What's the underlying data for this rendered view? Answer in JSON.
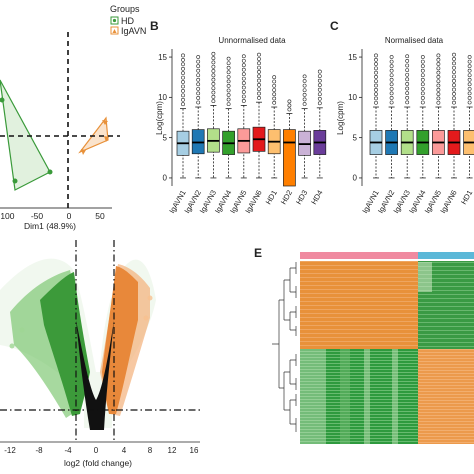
{
  "panels": {
    "A": {
      "legend_title": "Groups",
      "legend_items": [
        "HD",
        "IgAVN"
      ],
      "xlabel": "Dim1 (48.9%)",
      "xticks": [
        "-100",
        "-50",
        "0",
        "50"
      ]
    },
    "B": {
      "letter": "B",
      "title": "Unnormalised data",
      "ylabel": "Log(cpm)",
      "yticks": [
        "0",
        "5",
        "10",
        "15"
      ]
    },
    "C": {
      "letter": "C",
      "title": "Normalised data",
      "ylabel": "Log(cpm)",
      "yticks": [
        "0",
        "5",
        "10",
        "15"
      ]
    },
    "D": {
      "xlabel": "log2 (fold change)",
      "xticks": [
        "-12",
        "-8",
        "-4",
        "0",
        "4",
        "8",
        "12",
        "16"
      ]
    },
    "E": {
      "letter": "E"
    }
  },
  "colors": {
    "HD": "#3a9a3a",
    "IgAVN": "#e8913a",
    "heat_orange": "#e8913a",
    "heat_green": "#2e9a3e",
    "bar_pink": "#f08aa0",
    "bar_blue": "#5bb8d8"
  },
  "chart_data": [
    {
      "panel": "B",
      "type": "box",
      "title": "Unnormalised data",
      "ylabel": "Log(cpm)",
      "ylim": [
        -1,
        16
      ],
      "categories": [
        "IgAVN1",
        "IgAVN2",
        "IgAVN3",
        "IgAVN4",
        "IgAVN5",
        "IgAVN6",
        "HD1",
        "HD2",
        "HD3",
        "HD4"
      ],
      "colors": [
        "#a6cee3",
        "#1f78b4",
        "#b2df8a",
        "#33a02c",
        "#fb9a99",
        "#e31a1c",
        "#fdbf6f",
        "#ff7f00",
        "#cab2d6",
        "#6a3d9a"
      ],
      "q1": [
        2.8,
        3.0,
        3.2,
        2.9,
        3.1,
        3.3,
        3.0,
        -1.0,
        2.8,
        2.9
      ],
      "median": [
        4.3,
        4.4,
        4.6,
        4.3,
        4.6,
        4.8,
        4.5,
        4.4,
        4.2,
        4.4
      ],
      "q3": [
        5.8,
        6.0,
        6.1,
        5.8,
        6.1,
        6.3,
        6.0,
        6.0,
        5.8,
        5.9
      ],
      "whisker_low": [
        0.0,
        0.0,
        0.0,
        0.0,
        0.0,
        0.0,
        0.0,
        0.0,
        0.0,
        0.0
      ],
      "whisker_high": [
        8.6,
        8.8,
        9.0,
        8.6,
        9.0,
        9.4,
        8.8,
        8.0,
        8.6,
        8.7
      ],
      "outlier_max": [
        15.2,
        15.0,
        15.4,
        14.8,
        15.1,
        15.3,
        12.5,
        9.5,
        12.6,
        13.2
      ]
    },
    {
      "panel": "C",
      "type": "box",
      "title": "Normalised data",
      "ylabel": "Log(cpm)",
      "ylim": [
        -1,
        16
      ],
      "categories": [
        "IgAVN1",
        "IgAVN2",
        "IgAVN3",
        "IgAVN4",
        "IgAVN5",
        "IgAVN6",
        "HD1"
      ],
      "colors": [
        "#a6cee3",
        "#1f78b4",
        "#b2df8a",
        "#33a02c",
        "#fb9a99",
        "#e31a1c",
        "#fdbf6f"
      ],
      "q1": [
        2.9,
        2.9,
        2.9,
        2.9,
        2.9,
        2.9,
        2.9
      ],
      "median": [
        4.4,
        4.4,
        4.4,
        4.4,
        4.4,
        4.4,
        4.4
      ],
      "q3": [
        5.9,
        5.9,
        5.9,
        5.9,
        5.9,
        5.9,
        5.9
      ],
      "whisker_low": [
        0.0,
        0.0,
        0.0,
        0.0,
        0.0,
        0.0,
        0.0
      ],
      "whisker_high": [
        8.8,
        8.8,
        8.8,
        8.8,
        8.8,
        8.8,
        8.8
      ],
      "outlier_max": [
        15.2,
        15.0,
        15.1,
        15.0,
        15.2,
        15.3,
        15.0
      ]
    }
  ]
}
